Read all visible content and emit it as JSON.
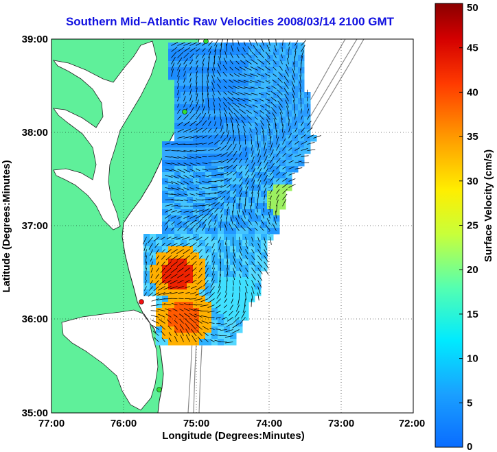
{
  "title": "Southern Mid–Atlantic Raw Velocities 2008/03/14 2100 GMT",
  "axes": {
    "xlabel": "Longitude (Degrees:Minutes)",
    "ylabel": "Latitude (Degrees:Minutes)",
    "x_ticks": [
      "77:00",
      "76:00",
      "75:00",
      "74:00",
      "73:00",
      "72:00"
    ],
    "y_ticks": [
      "39:00",
      "38:00",
      "37:00",
      "36:00",
      "35:00"
    ]
  },
  "colorbar": {
    "label": "Surface Velocity (cm/s)",
    "ticks": [
      "0",
      "5",
      "10",
      "15",
      "20",
      "25",
      "30",
      "35",
      "40",
      "45",
      "50"
    ],
    "min": 0,
    "max": 50
  },
  "colors": {
    "land": "#5ff09a",
    "water": "#ffffff",
    "title": "#1010e0",
    "station_green": "#33dd33",
    "station_red": "#ee1111",
    "bathymetry": "#888888"
  }
}
